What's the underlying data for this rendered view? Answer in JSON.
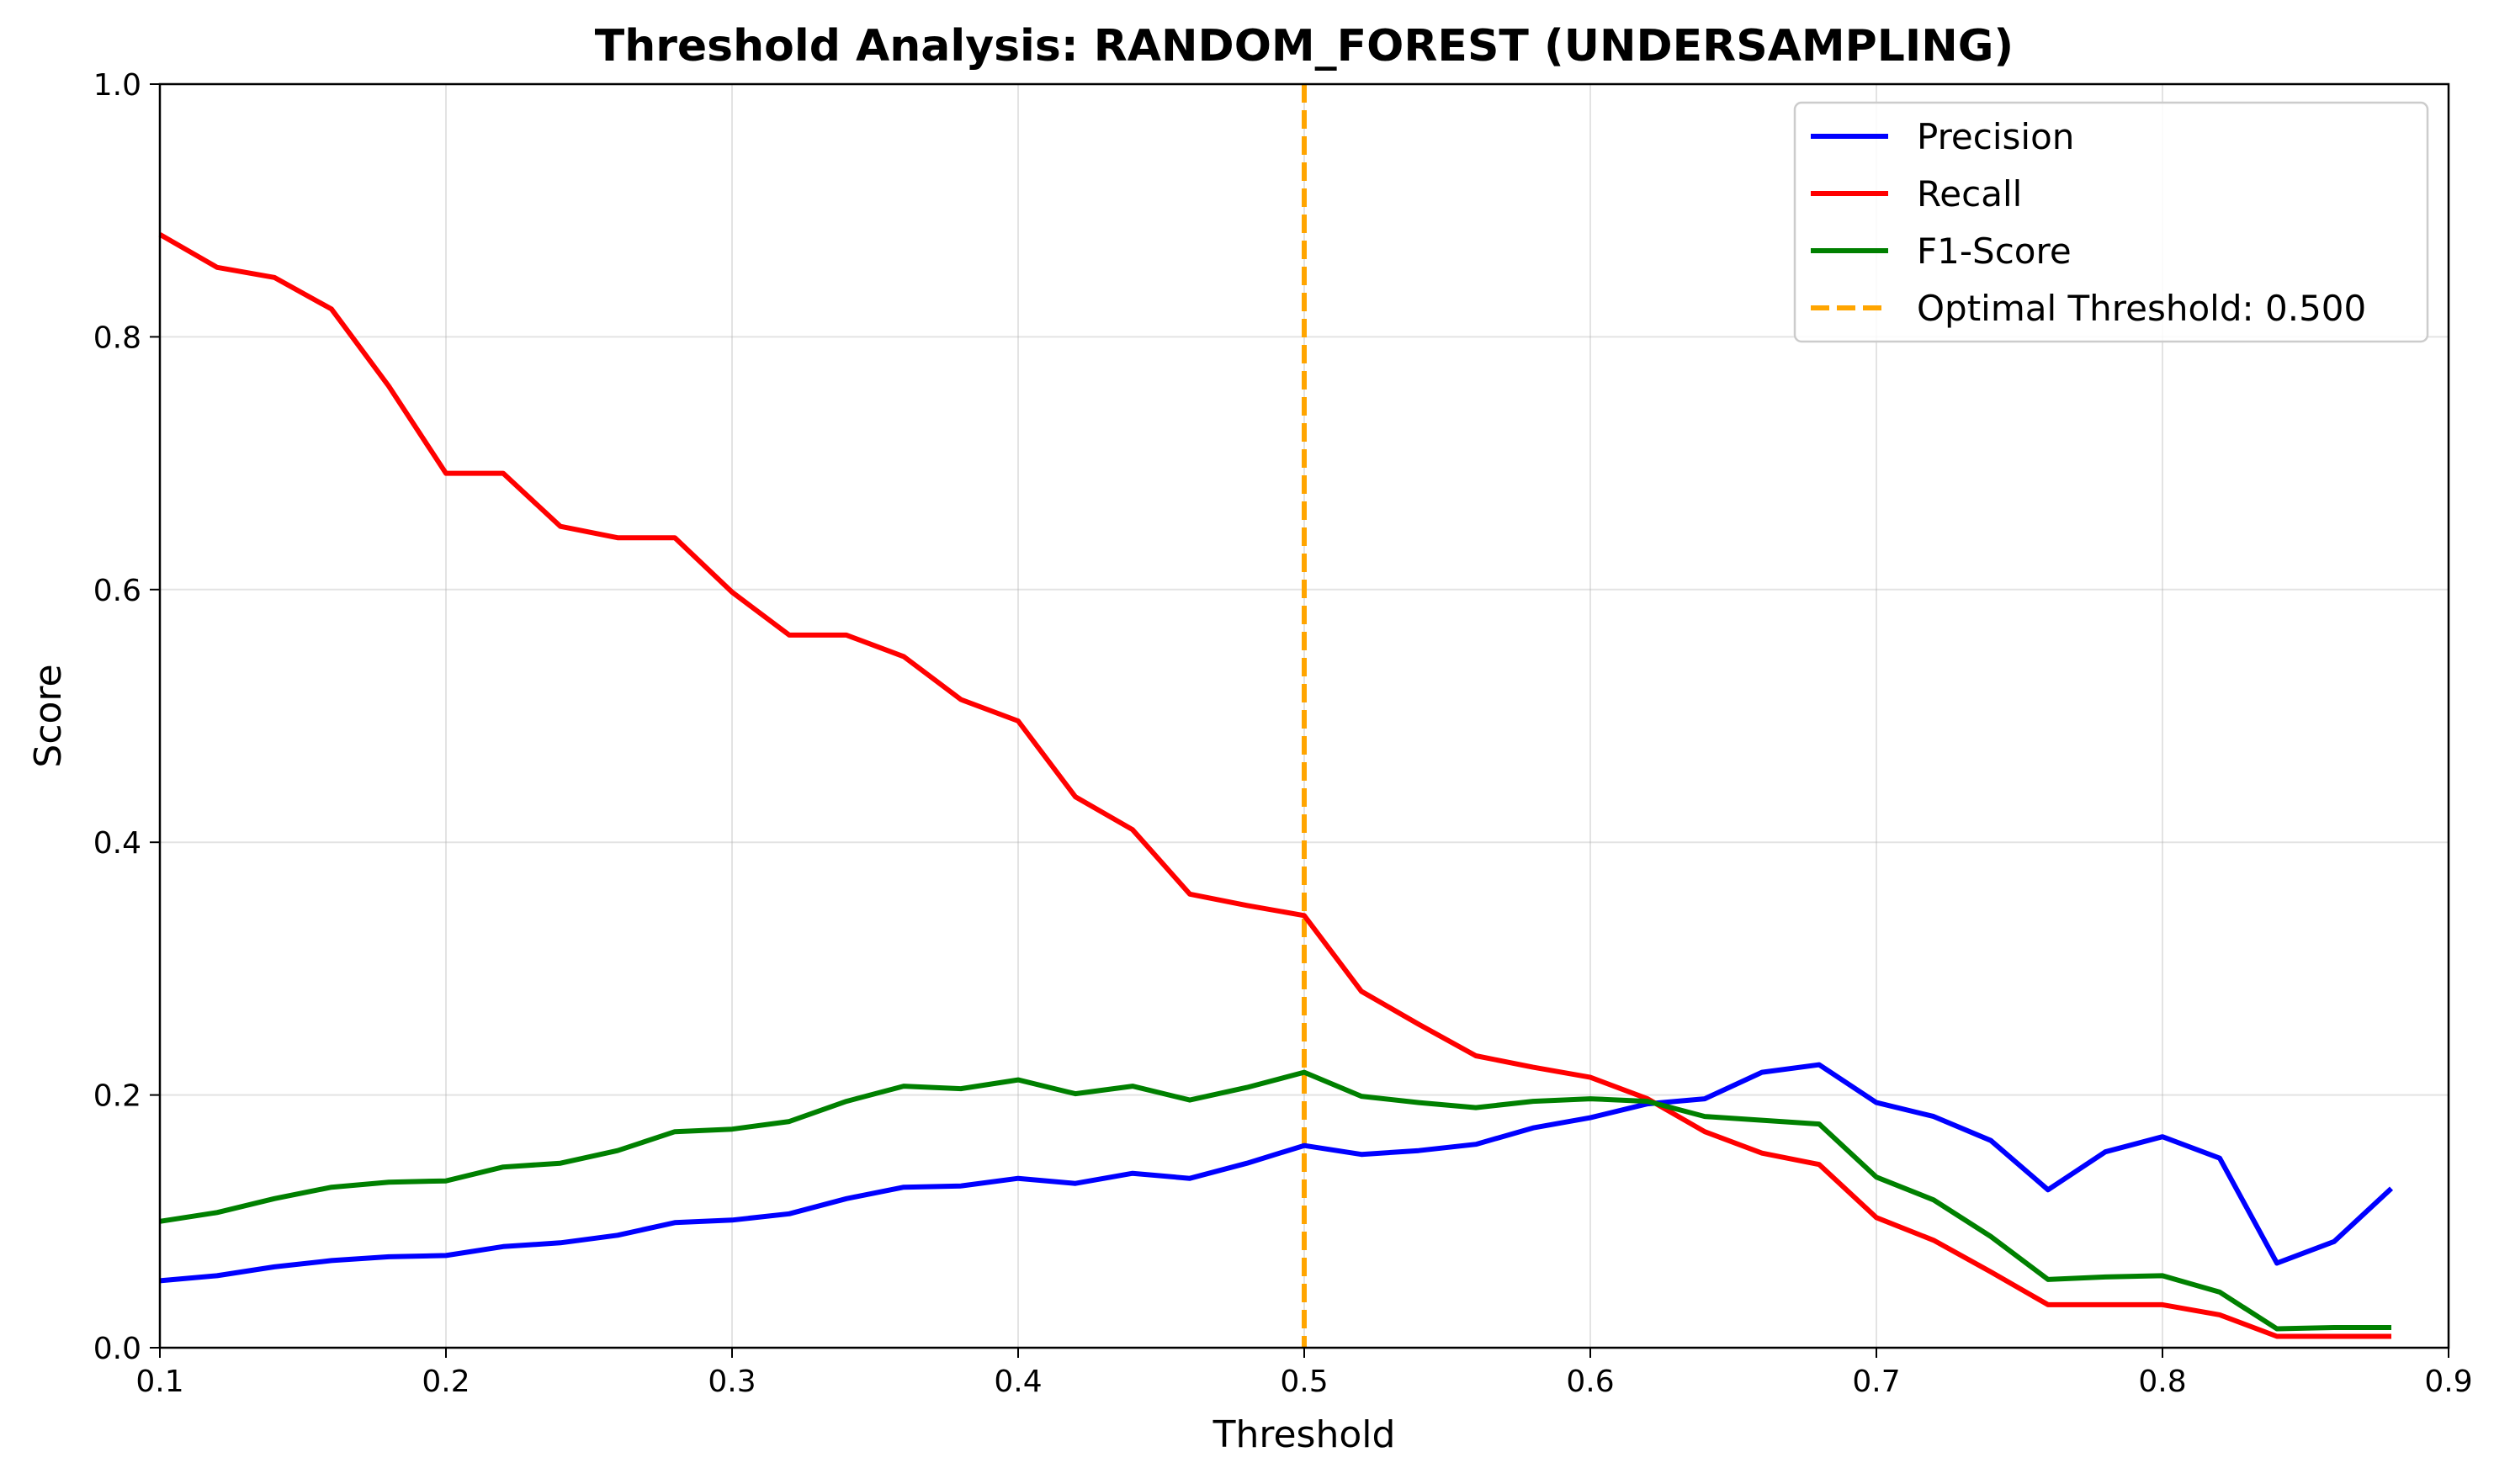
{
  "chart_data": {
    "type": "line",
    "title": "Threshold Analysis: RANDOM_FOREST (UNDERSAMPLING)",
    "xlabel": "Threshold",
    "ylabel": "Score",
    "xlim": [
      0.1,
      0.9
    ],
    "ylim": [
      0.0,
      1.0
    ],
    "xticks": [
      "0.1",
      "0.2",
      "0.3",
      "0.4",
      "0.5",
      "0.6",
      "0.7",
      "0.8",
      "0.9"
    ],
    "yticks": [
      "0.0",
      "0.2",
      "0.4",
      "0.6",
      "0.8",
      "1.0"
    ],
    "grid": true,
    "legend_position": "top-right",
    "x": [
      0.1,
      0.12,
      0.14,
      0.16,
      0.18,
      0.2,
      0.22,
      0.24,
      0.26,
      0.28,
      0.3,
      0.32,
      0.34,
      0.36,
      0.38,
      0.4,
      0.42,
      0.44,
      0.46,
      0.48,
      0.5,
      0.52,
      0.54,
      0.56,
      0.58,
      0.6,
      0.62,
      0.64,
      0.66,
      0.68,
      0.7,
      0.72,
      0.74,
      0.76,
      0.78,
      0.8,
      0.82,
      0.84,
      0.86,
      0.88
    ],
    "series": [
      {
        "name": "Precision",
        "color": "#0000ff",
        "values": [
          0.053,
          0.057,
          0.064,
          0.069,
          0.072,
          0.073,
          0.08,
          0.083,
          0.089,
          0.099,
          0.101,
          0.106,
          0.118,
          0.127,
          0.128,
          0.134,
          0.13,
          0.138,
          0.134,
          0.146,
          0.16,
          0.153,
          0.156,
          0.161,
          0.174,
          0.182,
          0.193,
          0.197,
          0.218,
          0.224,
          0.194,
          0.183,
          0.164,
          0.125,
          0.155,
          0.167,
          0.15,
          0.067,
          0.084,
          0.126
        ]
      },
      {
        "name": "Recall",
        "color": "#ff0000",
        "values": [
          0.881,
          0.855,
          0.847,
          0.822,
          0.761,
          0.692,
          0.692,
          0.65,
          0.641,
          0.641,
          0.598,
          0.564,
          0.564,
          0.547,
          0.513,
          0.496,
          0.436,
          0.41,
          0.359,
          0.35,
          0.342,
          0.282,
          0.256,
          0.231,
          0.222,
          0.214,
          0.197,
          0.171,
          0.154,
          0.145,
          0.103,
          0.085,
          0.06,
          0.034,
          0.034,
          0.034,
          0.026,
          0.009,
          0.009,
          0.009
        ]
      },
      {
        "name": "F1-Score",
        "color": "#008000",
        "values": [
          0.1,
          0.107,
          0.118,
          0.127,
          0.131,
          0.132,
          0.143,
          0.146,
          0.156,
          0.171,
          0.173,
          0.179,
          0.195,
          0.207,
          0.205,
          0.212,
          0.201,
          0.207,
          0.196,
          0.206,
          0.218,
          0.199,
          0.194,
          0.19,
          0.195,
          0.197,
          0.195,
          0.183,
          0.18,
          0.177,
          0.135,
          0.117,
          0.088,
          0.054,
          0.056,
          0.057,
          0.044,
          0.015,
          0.016,
          0.016
        ]
      }
    ],
    "reference_line": {
      "name": "Optimal Threshold: 0.500",
      "x": 0.5,
      "color": "#ffa500",
      "style": "dashed"
    }
  }
}
